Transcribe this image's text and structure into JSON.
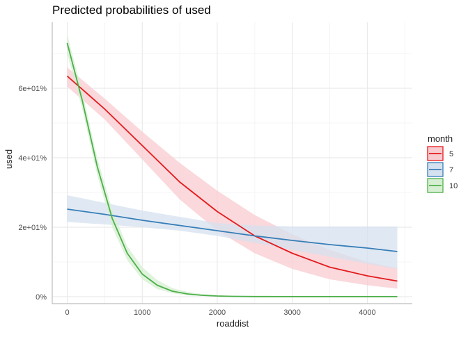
{
  "chart_data": {
    "type": "line",
    "title": "Predicted probabilities of used",
    "xlabel": "roaddist",
    "ylabel": "used",
    "xlim": [
      -200,
      4600
    ],
    "ylim": [
      -0.02,
      0.79
    ],
    "x_ticks": [
      0,
      1000,
      2000,
      3000,
      4000
    ],
    "x_tick_labels": [
      "0",
      "1000",
      "2000",
      "3000",
      "4000"
    ],
    "y_ticks": [
      0,
      0.2,
      0.4,
      0.6
    ],
    "y_tick_labels": [
      "0%",
      "2e+01%",
      "4e+01%",
      "6e+01%"
    ],
    "grid": true,
    "legend": {
      "title": "month",
      "placement": "right"
    },
    "series": [
      {
        "name": "5",
        "color": "#E41A1C",
        "fill": "#F8CBD0",
        "x": [
          0,
          500,
          1000,
          1500,
          2000,
          2500,
          3000,
          3500,
          4000,
          4400
        ],
        "y": [
          0.635,
          0.54,
          0.435,
          0.33,
          0.245,
          0.175,
          0.125,
          0.085,
          0.06,
          0.045
        ],
        "lower": [
          0.605,
          0.51,
          0.395,
          0.28,
          0.19,
          0.125,
          0.08,
          0.05,
          0.033,
          0.023
        ],
        "upper": [
          0.66,
          0.57,
          0.475,
          0.385,
          0.305,
          0.235,
          0.18,
          0.135,
          0.1,
          0.082
        ]
      },
      {
        "name": "7",
        "color": "#377EB8",
        "fill": "#D5E1EF",
        "x": [
          0,
          500,
          1000,
          1500,
          2000,
          2500,
          3000,
          3500,
          4000,
          4400
        ],
        "y": [
          0.252,
          0.237,
          0.22,
          0.205,
          0.19,
          0.175,
          0.162,
          0.15,
          0.14,
          0.13
        ],
        "lower": [
          0.215,
          0.208,
          0.2,
          0.19,
          0.175,
          0.155,
          0.135,
          0.115,
          0.095,
          0.08
        ],
        "upper": [
          0.292,
          0.27,
          0.248,
          0.23,
          0.212,
          0.205,
          0.202,
          0.202,
          0.202,
          0.202
        ]
      },
      {
        "name": "10",
        "color": "#4DAF4A",
        "fill": "#D6EFD2",
        "x": [
          0,
          200,
          400,
          600,
          800,
          1000,
          1200,
          1400,
          1600,
          1800,
          2000,
          2200,
          2500,
          3000,
          3500,
          4000,
          4400
        ],
        "y": [
          0.73,
          0.565,
          0.375,
          0.225,
          0.125,
          0.065,
          0.033,
          0.016,
          0.008,
          0.004,
          0.002,
          0.001,
          0.0005,
          0.0002,
          0.0001,
          0.0001,
          0.0001
        ],
        "lower": [
          0.7,
          0.54,
          0.35,
          0.2,
          0.105,
          0.05,
          0.022,
          0.01,
          0.004,
          0.002,
          0.001,
          0.0005,
          0.0002,
          0.0001,
          0.0,
          0.0,
          0.0
        ],
        "upper": [
          0.755,
          0.59,
          0.4,
          0.25,
          0.145,
          0.085,
          0.048,
          0.025,
          0.014,
          0.008,
          0.004,
          0.002,
          0.001,
          0.0005,
          0.0002,
          0.0002,
          0.0002
        ]
      }
    ]
  }
}
